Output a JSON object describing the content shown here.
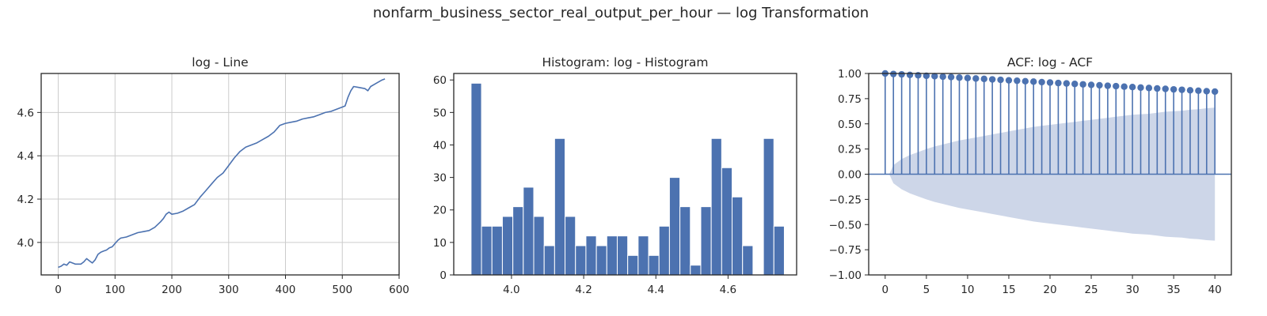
{
  "figure": {
    "title": "nonfarm_business_sector_real_output_per_hour — log Transformation",
    "line_color": "#4c72b0",
    "band_color": "#cdd6e8"
  },
  "chart_data": [
    {
      "type": "line",
      "title": "log - Line",
      "xlabel": "",
      "ylabel": "",
      "xlim": [
        -30,
        600
      ],
      "ylim": [
        3.85,
        4.78
      ],
      "xticks": [
        0,
        100,
        200,
        300,
        400,
        500,
        600
      ],
      "xtick_labels": [
        "0",
        "100",
        "200",
        "300",
        "400",
        "500",
        "600"
      ],
      "yticks": [
        4.0,
        4.2,
        4.4,
        4.6
      ],
      "ytick_labels": [
        "4.0",
        "4.2",
        "4.4",
        "4.6"
      ],
      "grid": true,
      "x": [
        0,
        5,
        10,
        15,
        20,
        25,
        30,
        35,
        40,
        45,
        50,
        55,
        60,
        65,
        70,
        75,
        80,
        85,
        90,
        95,
        100,
        105,
        110,
        120,
        130,
        140,
        150,
        160,
        170,
        180,
        185,
        190,
        195,
        200,
        210,
        220,
        230,
        240,
        250,
        260,
        270,
        280,
        290,
        300,
        310,
        320,
        330,
        340,
        350,
        360,
        370,
        380,
        390,
        400,
        410,
        420,
        430,
        440,
        450,
        460,
        470,
        480,
        490,
        500,
        505,
        510,
        515,
        520,
        530,
        540,
        545,
        550,
        560,
        570,
        575
      ],
      "values": [
        3.885,
        3.89,
        3.9,
        3.895,
        3.91,
        3.905,
        3.9,
        3.9,
        3.9,
        3.91,
        3.925,
        3.915,
        3.905,
        3.92,
        3.945,
        3.955,
        3.96,
        3.965,
        3.975,
        3.98,
        3.995,
        4.01,
        4.02,
        4.025,
        4.035,
        4.045,
        4.05,
        4.055,
        4.07,
        4.095,
        4.11,
        4.13,
        4.14,
        4.13,
        4.135,
        4.145,
        4.16,
        4.175,
        4.21,
        4.24,
        4.27,
        4.3,
        4.32,
        4.355,
        4.39,
        4.42,
        4.44,
        4.45,
        4.46,
        4.475,
        4.49,
        4.51,
        4.54,
        4.55,
        4.555,
        4.56,
        4.57,
        4.575,
        4.58,
        4.59,
        4.6,
        4.605,
        4.615,
        4.625,
        4.63,
        4.67,
        4.7,
        4.72,
        4.715,
        4.71,
        4.7,
        4.72,
        4.735,
        4.75,
        4.755
      ]
    },
    {
      "type": "bar",
      "title": "Histogram: log - Histogram",
      "xlabel": "",
      "ylabel": "",
      "xlim": [
        3.84,
        4.79
      ],
      "ylim": [
        0,
        62
      ],
      "xticks": [
        4.0,
        4.2,
        4.4,
        4.6
      ],
      "xtick_labels": [
        "4.0",
        "4.2",
        "4.4",
        "4.6"
      ],
      "yticks": [
        0,
        10,
        20,
        30,
        40,
        50,
        60
      ],
      "ytick_labels": [
        "0",
        "10",
        "20",
        "30",
        "40",
        "50",
        "60"
      ],
      "grid": false,
      "bin_start": 3.888,
      "bin_width": 0.02893,
      "values": [
        59,
        15,
        15,
        18,
        21,
        27,
        18,
        9,
        42,
        18,
        9,
        12,
        9,
        12,
        12,
        6,
        12,
        6,
        15,
        30,
        21,
        3,
        21,
        42,
        33,
        24,
        9,
        0,
        42,
        15
      ]
    },
    {
      "type": "scatter",
      "title": "ACF: log - ACF",
      "xlabel": "",
      "ylabel": "",
      "xlim": [
        -2,
        42
      ],
      "ylim": [
        -1.0,
        1.0
      ],
      "xticks": [
        0,
        5,
        10,
        15,
        20,
        25,
        30,
        35,
        40
      ],
      "xtick_labels": [
        "0",
        "5",
        "10",
        "15",
        "20",
        "25",
        "30",
        "35",
        "40"
      ],
      "yticks": [
        -1.0,
        -0.75,
        -0.5,
        -0.25,
        0.0,
        0.25,
        0.5,
        0.75,
        1.0
      ],
      "ytick_labels": [
        "−1.00",
        "−0.75",
        "−0.50",
        "−0.25",
        "0.00",
        "0.25",
        "0.50",
        "0.75",
        "1.00"
      ],
      "grid": false,
      "lags": [
        0,
        1,
        2,
        3,
        4,
        5,
        6,
        7,
        8,
        9,
        10,
        11,
        12,
        13,
        14,
        15,
        16,
        17,
        18,
        19,
        20,
        21,
        22,
        23,
        24,
        25,
        26,
        27,
        28,
        29,
        30,
        31,
        32,
        33,
        34,
        35,
        36,
        37,
        38,
        39,
        40
      ],
      "values": [
        1.0,
        0.995,
        0.991,
        0.986,
        0.982,
        0.977,
        0.973,
        0.968,
        0.964,
        0.959,
        0.955,
        0.95,
        0.946,
        0.941,
        0.937,
        0.932,
        0.928,
        0.923,
        0.919,
        0.914,
        0.91,
        0.905,
        0.901,
        0.896,
        0.892,
        0.887,
        0.883,
        0.878,
        0.874,
        0.869,
        0.865,
        0.86,
        0.856,
        0.851,
        0.847,
        0.842,
        0.838,
        0.833,
        0.829,
        0.824,
        0.82
      ],
      "confint": [
        0.0,
        0.09,
        0.15,
        0.19,
        0.22,
        0.25,
        0.275,
        0.295,
        0.315,
        0.335,
        0.35,
        0.365,
        0.38,
        0.395,
        0.41,
        0.425,
        0.44,
        0.455,
        0.47,
        0.48,
        0.49,
        0.5,
        0.51,
        0.52,
        0.53,
        0.54,
        0.55,
        0.56,
        0.57,
        0.58,
        0.59,
        0.595,
        0.6,
        0.61,
        0.62,
        0.625,
        0.63,
        0.64,
        0.645,
        0.655,
        0.66
      ]
    }
  ]
}
